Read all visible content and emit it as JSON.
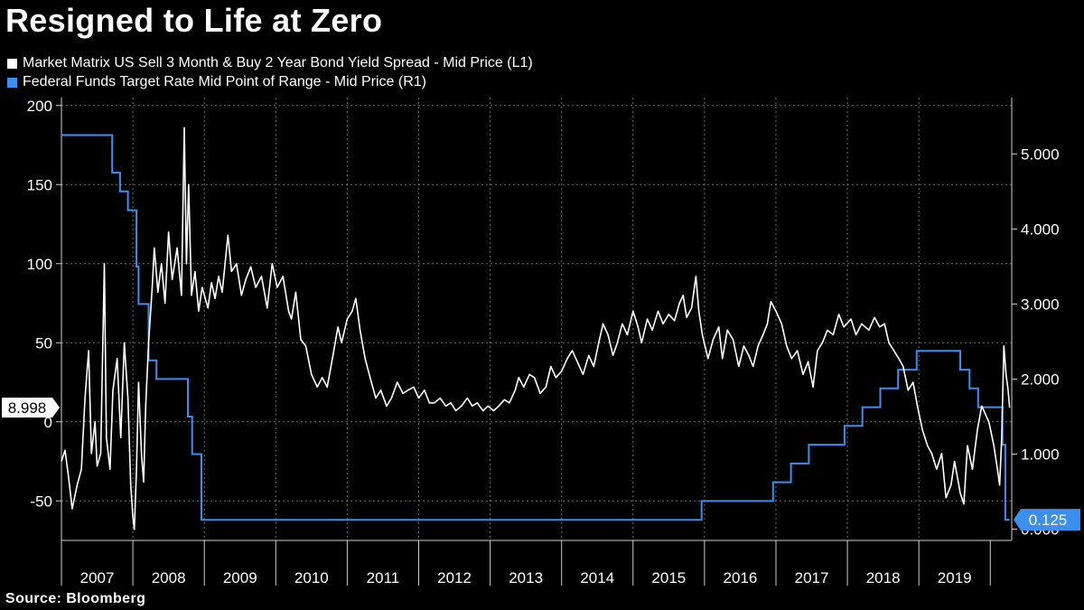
{
  "title": "Resigned to Life at Zero",
  "source": "Source: Bloomberg",
  "colors": {
    "background": "#000000",
    "series_l1": "#ffffff",
    "series_r1": "#3c8fef",
    "grid": "#6a6a6a"
  },
  "chart_data": {
    "type": "line",
    "title": "Resigned to Life at Zero",
    "legend_position": "top-left",
    "grid": true,
    "x_categories": [
      "2007",
      "2008",
      "2009",
      "2010",
      "2011",
      "2012",
      "2013",
      "2014",
      "2015",
      "2016",
      "2017",
      "2018",
      "2019"
    ],
    "xlim": [
      2007.0,
      2020.3
    ],
    "left_axis": {
      "ticks": [
        "200",
        "150",
        "100",
        "50",
        "0",
        "-50"
      ],
      "range": [
        -75,
        205
      ]
    },
    "right_axis": {
      "ticks": [
        "5.000",
        "4.000",
        "3.000",
        "2.000",
        "1.000",
        "0.000"
      ],
      "range": [
        -0.15,
        5.75
      ]
    },
    "last_value_labels": {
      "l1": "8.998",
      "r1": "0.125"
    },
    "series": [
      {
        "name": "Market Matrix US Sell 3 Month & Buy 2 Year Bond Yield Spread - Mid Price (L1)",
        "axis": "left",
        "points": [
          [
            2007.0,
            -25
          ],
          [
            2007.05,
            -18
          ],
          [
            2007.1,
            -35
          ],
          [
            2007.15,
            -55
          ],
          [
            2007.22,
            -40
          ],
          [
            2007.28,
            -30
          ],
          [
            2007.33,
            15
          ],
          [
            2007.38,
            45
          ],
          [
            2007.42,
            -20
          ],
          [
            2007.47,
            0
          ],
          [
            2007.5,
            -28
          ],
          [
            2007.55,
            -20
          ],
          [
            2007.6,
            100
          ],
          [
            2007.63,
            -10
          ],
          [
            2007.68,
            -30
          ],
          [
            2007.72,
            20
          ],
          [
            2007.78,
            40
          ],
          [
            2007.83,
            -10
          ],
          [
            2007.88,
            50
          ],
          [
            2007.93,
            15
          ],
          [
            2007.97,
            -40
          ],
          [
            2008.0,
            -60
          ],
          [
            2008.02,
            -68
          ],
          [
            2008.05,
            -30
          ],
          [
            2008.08,
            25
          ],
          [
            2008.12,
            -20
          ],
          [
            2008.15,
            -38
          ],
          [
            2008.18,
            10
          ],
          [
            2008.22,
            50
          ],
          [
            2008.27,
            85
          ],
          [
            2008.3,
            110
          ],
          [
            2008.35,
            82
          ],
          [
            2008.4,
            100
          ],
          [
            2008.45,
            75
          ],
          [
            2008.5,
            120
          ],
          [
            2008.55,
            90
          ],
          [
            2008.62,
            110
          ],
          [
            2008.68,
            80
          ],
          [
            2008.72,
            186
          ],
          [
            2008.75,
            100
          ],
          [
            2008.78,
            150
          ],
          [
            2008.82,
            80
          ],
          [
            2008.87,
            95
          ],
          [
            2008.92,
            70
          ],
          [
            2008.97,
            85
          ],
          [
            2009.05,
            72
          ],
          [
            2009.1,
            88
          ],
          [
            2009.15,
            78
          ],
          [
            2009.2,
            92
          ],
          [
            2009.25,
            82
          ],
          [
            2009.33,
            118
          ],
          [
            2009.38,
            95
          ],
          [
            2009.45,
            100
          ],
          [
            2009.52,
            80
          ],
          [
            2009.58,
            90
          ],
          [
            2009.65,
            98
          ],
          [
            2009.72,
            85
          ],
          [
            2009.8,
            92
          ],
          [
            2009.88,
            72
          ],
          [
            2009.95,
            100
          ],
          [
            2010.02,
            85
          ],
          [
            2010.1,
            92
          ],
          [
            2010.18,
            70
          ],
          [
            2010.22,
            65
          ],
          [
            2010.28,
            82
          ],
          [
            2010.35,
            52
          ],
          [
            2010.42,
            48
          ],
          [
            2010.5,
            30
          ],
          [
            2010.58,
            22
          ],
          [
            2010.65,
            28
          ],
          [
            2010.72,
            22
          ],
          [
            2010.8,
            42
          ],
          [
            2010.87,
            60
          ],
          [
            2010.92,
            50
          ],
          [
            2011.0,
            65
          ],
          [
            2011.07,
            70
          ],
          [
            2011.12,
            78
          ],
          [
            2011.18,
            58
          ],
          [
            2011.25,
            40
          ],
          [
            2011.32,
            28
          ],
          [
            2011.4,
            15
          ],
          [
            2011.47,
            20
          ],
          [
            2011.55,
            10
          ],
          [
            2011.62,
            15
          ],
          [
            2011.7,
            25
          ],
          [
            2011.78,
            18
          ],
          [
            2011.85,
            20
          ],
          [
            2011.93,
            22
          ],
          [
            2012.0,
            15
          ],
          [
            2012.08,
            20
          ],
          [
            2012.15,
            12
          ],
          [
            2012.22,
            12
          ],
          [
            2012.3,
            15
          ],
          [
            2012.38,
            10
          ],
          [
            2012.45,
            12
          ],
          [
            2012.52,
            7
          ],
          [
            2012.6,
            10
          ],
          [
            2012.68,
            15
          ],
          [
            2012.75,
            10
          ],
          [
            2012.82,
            12
          ],
          [
            2012.9,
            7
          ],
          [
            2012.97,
            10
          ],
          [
            2013.05,
            7
          ],
          [
            2013.12,
            10
          ],
          [
            2013.2,
            14
          ],
          [
            2013.27,
            12
          ],
          [
            2013.35,
            20
          ],
          [
            2013.4,
            28
          ],
          [
            2013.47,
            22
          ],
          [
            2013.55,
            30
          ],
          [
            2013.62,
            28
          ],
          [
            2013.7,
            18
          ],
          [
            2013.78,
            22
          ],
          [
            2013.85,
            35
          ],
          [
            2013.92,
            28
          ],
          [
            2014.0,
            32
          ],
          [
            2014.08,
            40
          ],
          [
            2014.15,
            45
          ],
          [
            2014.22,
            38
          ],
          [
            2014.3,
            30
          ],
          [
            2014.38,
            42
          ],
          [
            2014.45,
            35
          ],
          [
            2014.52,
            50
          ],
          [
            2014.58,
            62
          ],
          [
            2014.65,
            55
          ],
          [
            2014.72,
            42
          ],
          [
            2014.78,
            50
          ],
          [
            2014.85,
            62
          ],
          [
            2014.92,
            55
          ],
          [
            2015.0,
            70
          ],
          [
            2015.07,
            60
          ],
          [
            2015.12,
            50
          ],
          [
            2015.2,
            65
          ],
          [
            2015.27,
            58
          ],
          [
            2015.35,
            70
          ],
          [
            2015.42,
            62
          ],
          [
            2015.5,
            68
          ],
          [
            2015.58,
            64
          ],
          [
            2015.65,
            75
          ],
          [
            2015.7,
            80
          ],
          [
            2015.75,
            66
          ],
          [
            2015.82,
            72
          ],
          [
            2015.88,
            92
          ],
          [
            2015.92,
            70
          ],
          [
            2015.97,
            55
          ],
          [
            2016.05,
            40
          ],
          [
            2016.12,
            52
          ],
          [
            2016.2,
            60
          ],
          [
            2016.25,
            40
          ],
          [
            2016.32,
            58
          ],
          [
            2016.4,
            52
          ],
          [
            2016.48,
            35
          ],
          [
            2016.55,
            48
          ],
          [
            2016.62,
            42
          ],
          [
            2016.68,
            35
          ],
          [
            2016.75,
            48
          ],
          [
            2016.82,
            55
          ],
          [
            2016.88,
            62
          ],
          [
            2016.93,
            76
          ],
          [
            2017.0,
            70
          ],
          [
            2017.08,
            62
          ],
          [
            2017.15,
            48
          ],
          [
            2017.22,
            40
          ],
          [
            2017.3,
            45
          ],
          [
            2017.38,
            30
          ],
          [
            2017.45,
            38
          ],
          [
            2017.52,
            22
          ],
          [
            2017.58,
            45
          ],
          [
            2017.65,
            50
          ],
          [
            2017.72,
            58
          ],
          [
            2017.8,
            55
          ],
          [
            2017.88,
            68
          ],
          [
            2017.95,
            60
          ],
          [
            2018.05,
            65
          ],
          [
            2018.12,
            55
          ],
          [
            2018.2,
            62
          ],
          [
            2018.3,
            58
          ],
          [
            2018.38,
            66
          ],
          [
            2018.45,
            60
          ],
          [
            2018.52,
            62
          ],
          [
            2018.58,
            50
          ],
          [
            2018.65,
            45
          ],
          [
            2018.72,
            40
          ],
          [
            2018.78,
            35
          ],
          [
            2018.85,
            20
          ],
          [
            2018.92,
            25
          ],
          [
            2018.98,
            10
          ],
          [
            2019.05,
            -5
          ],
          [
            2019.12,
            -15
          ],
          [
            2019.18,
            -20
          ],
          [
            2019.25,
            -30
          ],
          [
            2019.32,
            -20
          ],
          [
            2019.38,
            -48
          ],
          [
            2019.45,
            -40
          ],
          [
            2019.5,
            -25
          ],
          [
            2019.58,
            -45
          ],
          [
            2019.63,
            -52
          ],
          [
            2019.68,
            -15
          ],
          [
            2019.75,
            -30
          ],
          [
            2019.82,
            -5
          ],
          [
            2019.88,
            10
          ],
          [
            2019.93,
            5
          ],
          [
            2019.98,
            0
          ],
          [
            2020.05,
            -15
          ],
          [
            2020.1,
            -30
          ],
          [
            2020.13,
            -40
          ],
          [
            2020.16,
            -10
          ],
          [
            2020.19,
            48
          ],
          [
            2020.22,
            30
          ],
          [
            2020.25,
            20
          ],
          [
            2020.27,
            8.998
          ]
        ]
      },
      {
        "name": "Federal Funds Target Rate Mid Point of Range - Mid Price (R1)",
        "axis": "right",
        "points": [
          [
            2007.0,
            5.25
          ],
          [
            2007.71,
            5.25
          ],
          [
            2007.71,
            4.75
          ],
          [
            2007.82,
            4.75
          ],
          [
            2007.82,
            4.5
          ],
          [
            2007.93,
            4.5
          ],
          [
            2007.93,
            4.25
          ],
          [
            2008.05,
            4.25
          ],
          [
            2008.05,
            3.5
          ],
          [
            2008.08,
            3.5
          ],
          [
            2008.08,
            3.0
          ],
          [
            2008.22,
            3.0
          ],
          [
            2008.22,
            2.25
          ],
          [
            2008.33,
            2.25
          ],
          [
            2008.33,
            2.0
          ],
          [
            2008.77,
            2.0
          ],
          [
            2008.77,
            1.5
          ],
          [
            2008.83,
            1.5
          ],
          [
            2008.83,
            1.0
          ],
          [
            2008.96,
            1.0
          ],
          [
            2008.96,
            0.125
          ],
          [
            2015.96,
            0.125
          ],
          [
            2015.96,
            0.375
          ],
          [
            2016.96,
            0.375
          ],
          [
            2016.96,
            0.625
          ],
          [
            2017.21,
            0.625
          ],
          [
            2017.21,
            0.875
          ],
          [
            2017.46,
            0.875
          ],
          [
            2017.46,
            1.125
          ],
          [
            2017.96,
            1.125
          ],
          [
            2017.96,
            1.375
          ],
          [
            2018.21,
            1.375
          ],
          [
            2018.21,
            1.625
          ],
          [
            2018.46,
            1.625
          ],
          [
            2018.46,
            1.875
          ],
          [
            2018.71,
            1.875
          ],
          [
            2018.71,
            2.125
          ],
          [
            2018.97,
            2.125
          ],
          [
            2018.97,
            2.375
          ],
          [
            2019.58,
            2.375
          ],
          [
            2019.58,
            2.125
          ],
          [
            2019.71,
            2.125
          ],
          [
            2019.71,
            1.875
          ],
          [
            2019.83,
            1.875
          ],
          [
            2019.83,
            1.625
          ],
          [
            2020.17,
            1.625
          ],
          [
            2020.17,
            1.125
          ],
          [
            2020.21,
            1.125
          ],
          [
            2020.21,
            0.125
          ],
          [
            2020.27,
            0.125
          ]
        ]
      }
    ]
  }
}
